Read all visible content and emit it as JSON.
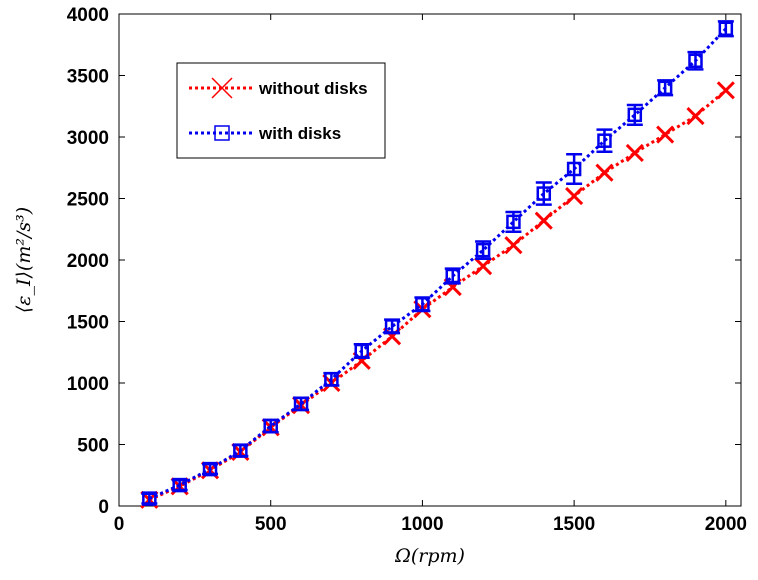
{
  "chart_data": {
    "type": "line",
    "title": "",
    "xlabel": "Ω(rpm)",
    "ylabel": "⟨ε_I⟩(m²/s³)",
    "xlim": [
      0,
      2050
    ],
    "ylim": [
      0,
      4000
    ],
    "xticks": [
      0,
      500,
      1000,
      1500,
      2000
    ],
    "yticks": [
      0,
      500,
      1000,
      1500,
      2000,
      2500,
      3000,
      3500,
      4000
    ],
    "grid": false,
    "legend_position": "top-left",
    "x": [
      100,
      200,
      300,
      400,
      500,
      600,
      700,
      800,
      900,
      1000,
      1100,
      1200,
      1300,
      1400,
      1500,
      1600,
      1700,
      1800,
      1900,
      2000
    ],
    "series": [
      {
        "name": "without disks",
        "color": "#ff0000",
        "marker": "x",
        "values": [
          50,
          160,
          290,
          440,
          640,
          820,
          1000,
          1180,
          1380,
          1600,
          1780,
          1950,
          2120,
          2320,
          2520,
          2710,
          2870,
          3020,
          3170,
          3380
        ]
      },
      {
        "name": "with disks",
        "color": "#0000ee",
        "marker": "square",
        "values": [
          60,
          170,
          300,
          450,
          650,
          830,
          1030,
          1260,
          1460,
          1640,
          1870,
          2080,
          2310,
          2540,
          2740,
          2970,
          3180,
          3400,
          3620,
          3880
        ],
        "errors": [
          40,
          40,
          40,
          45,
          50,
          50,
          50,
          55,
          55,
          55,
          60,
          70,
          80,
          90,
          120,
          90,
          80,
          60,
          70,
          60
        ]
      }
    ]
  }
}
